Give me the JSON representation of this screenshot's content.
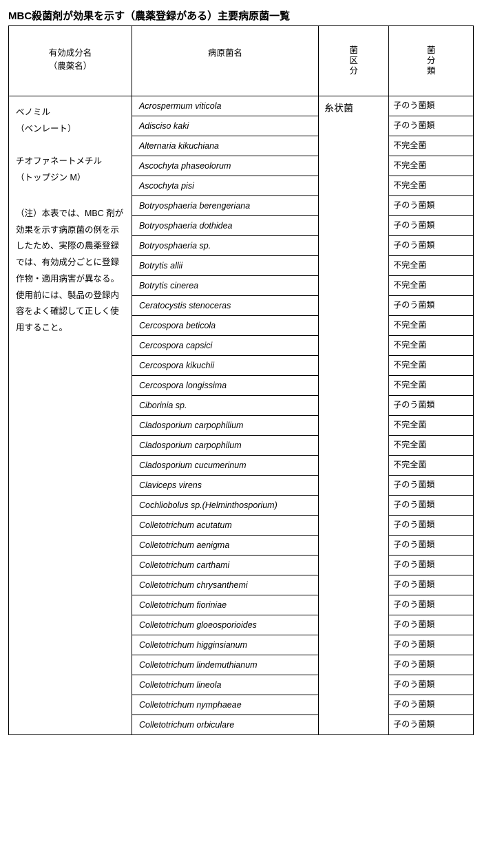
{
  "title": "MBC殺菌剤が効果を示す（農薬登録がある）主要病原菌一覧",
  "headers": {
    "ingredient_line1": "有効成分名",
    "ingredient_line2": "（農薬名）",
    "pathogen": "病原菌名",
    "category_c1": "菌",
    "category_c2": "区",
    "category_c3": "分",
    "class_c1": "菌",
    "class_c2": "分",
    "class_c3": "類"
  },
  "ingredient_cell": {
    "line1": "ベノミル",
    "line2": "（ベンレート）",
    "line3": "",
    "line4": "チオファネートメチル",
    "line5": "（トップジン M）",
    "note": "（注）本表では、MBC 剤が効果を示す病原菌の例を示したため、実際の農薬登録では、有効成分ごとに登録作物・適用病害が異なる。使用前には、製品の登録内容をよく確認して正しく使用すること。"
  },
  "category_merged": "糸状菌",
  "rows": [
    {
      "pathogen": "Acrospermum viticola",
      "class": "子のう菌類"
    },
    {
      "pathogen": "Adisciso kaki",
      "class": "子のう菌類"
    },
    {
      "pathogen": "Alternaria kikuchiana",
      "class": "不完全菌"
    },
    {
      "pathogen": "Ascochyta phaseolorum",
      "class": "不完全菌"
    },
    {
      "pathogen": "Ascochyta pisi",
      "class": "不完全菌"
    },
    {
      "pathogen": "Botryosphaeria berengeriana",
      "class": "子のう菌類"
    },
    {
      "pathogen": "Botryosphaeria dothidea",
      "class": "子のう菌類"
    },
    {
      "pathogen": "Botryosphaeria sp.",
      "class": "子のう菌類"
    },
    {
      "pathogen": "Botrytis allii",
      "class": "不完全菌"
    },
    {
      "pathogen": "Botrytis cinerea",
      "class": "不完全菌"
    },
    {
      "pathogen": "Ceratocystis stenoceras",
      "class": "子のう菌類"
    },
    {
      "pathogen": "Cercospora beticola",
      "class": "不完全菌"
    },
    {
      "pathogen": "Cercospora capsici",
      "class": "不完全菌"
    },
    {
      "pathogen": "Cercospora kikuchii",
      "class": "不完全菌"
    },
    {
      "pathogen": "Cercospora longissima",
      "class": "不完全菌"
    },
    {
      "pathogen": "Ciborinia sp.",
      "class": "子のう菌類"
    },
    {
      "pathogen": "Cladosporium carpophilium",
      "class": "不完全菌"
    },
    {
      "pathogen": "Cladosporium carpophilum",
      "class": "不完全菌"
    },
    {
      "pathogen": "Cladosporium cucumerinum",
      "class": "不完全菌"
    },
    {
      "pathogen": "Claviceps virens",
      "class": "子のう菌類"
    },
    {
      "pathogen": "Cochliobolus sp.(Helminthosporium)",
      "class": "子のう菌類"
    },
    {
      "pathogen": "Colletotrichum acutatum",
      "class": "子のう菌類"
    },
    {
      "pathogen": "Colletotrichum aenigma",
      "class": "子のう菌類"
    },
    {
      "pathogen": "Colletotrichum carthami",
      "class": "子のう菌類"
    },
    {
      "pathogen": "Colletotrichum chrysanthemi",
      "class": "子のう菌類"
    },
    {
      "pathogen": "Colletotrichum fioriniae",
      "class": "子のう菌類"
    },
    {
      "pathogen": "Colletotrichum gloeosporioides",
      "class": "子のう菌類"
    },
    {
      "pathogen": "Colletotrichum higginsianum",
      "class": "子のう菌類"
    },
    {
      "pathogen": "Colletotrichum lindemuthianum",
      "class": "子のう菌類"
    },
    {
      "pathogen": "Colletotrichum lineola",
      "class": "子のう菌類"
    },
    {
      "pathogen": "Colletotrichum nymphaeae",
      "class": "子のう菌類"
    },
    {
      "pathogen": "Colletotrichum orbiculare",
      "class": "子のう菌類"
    }
  ]
}
